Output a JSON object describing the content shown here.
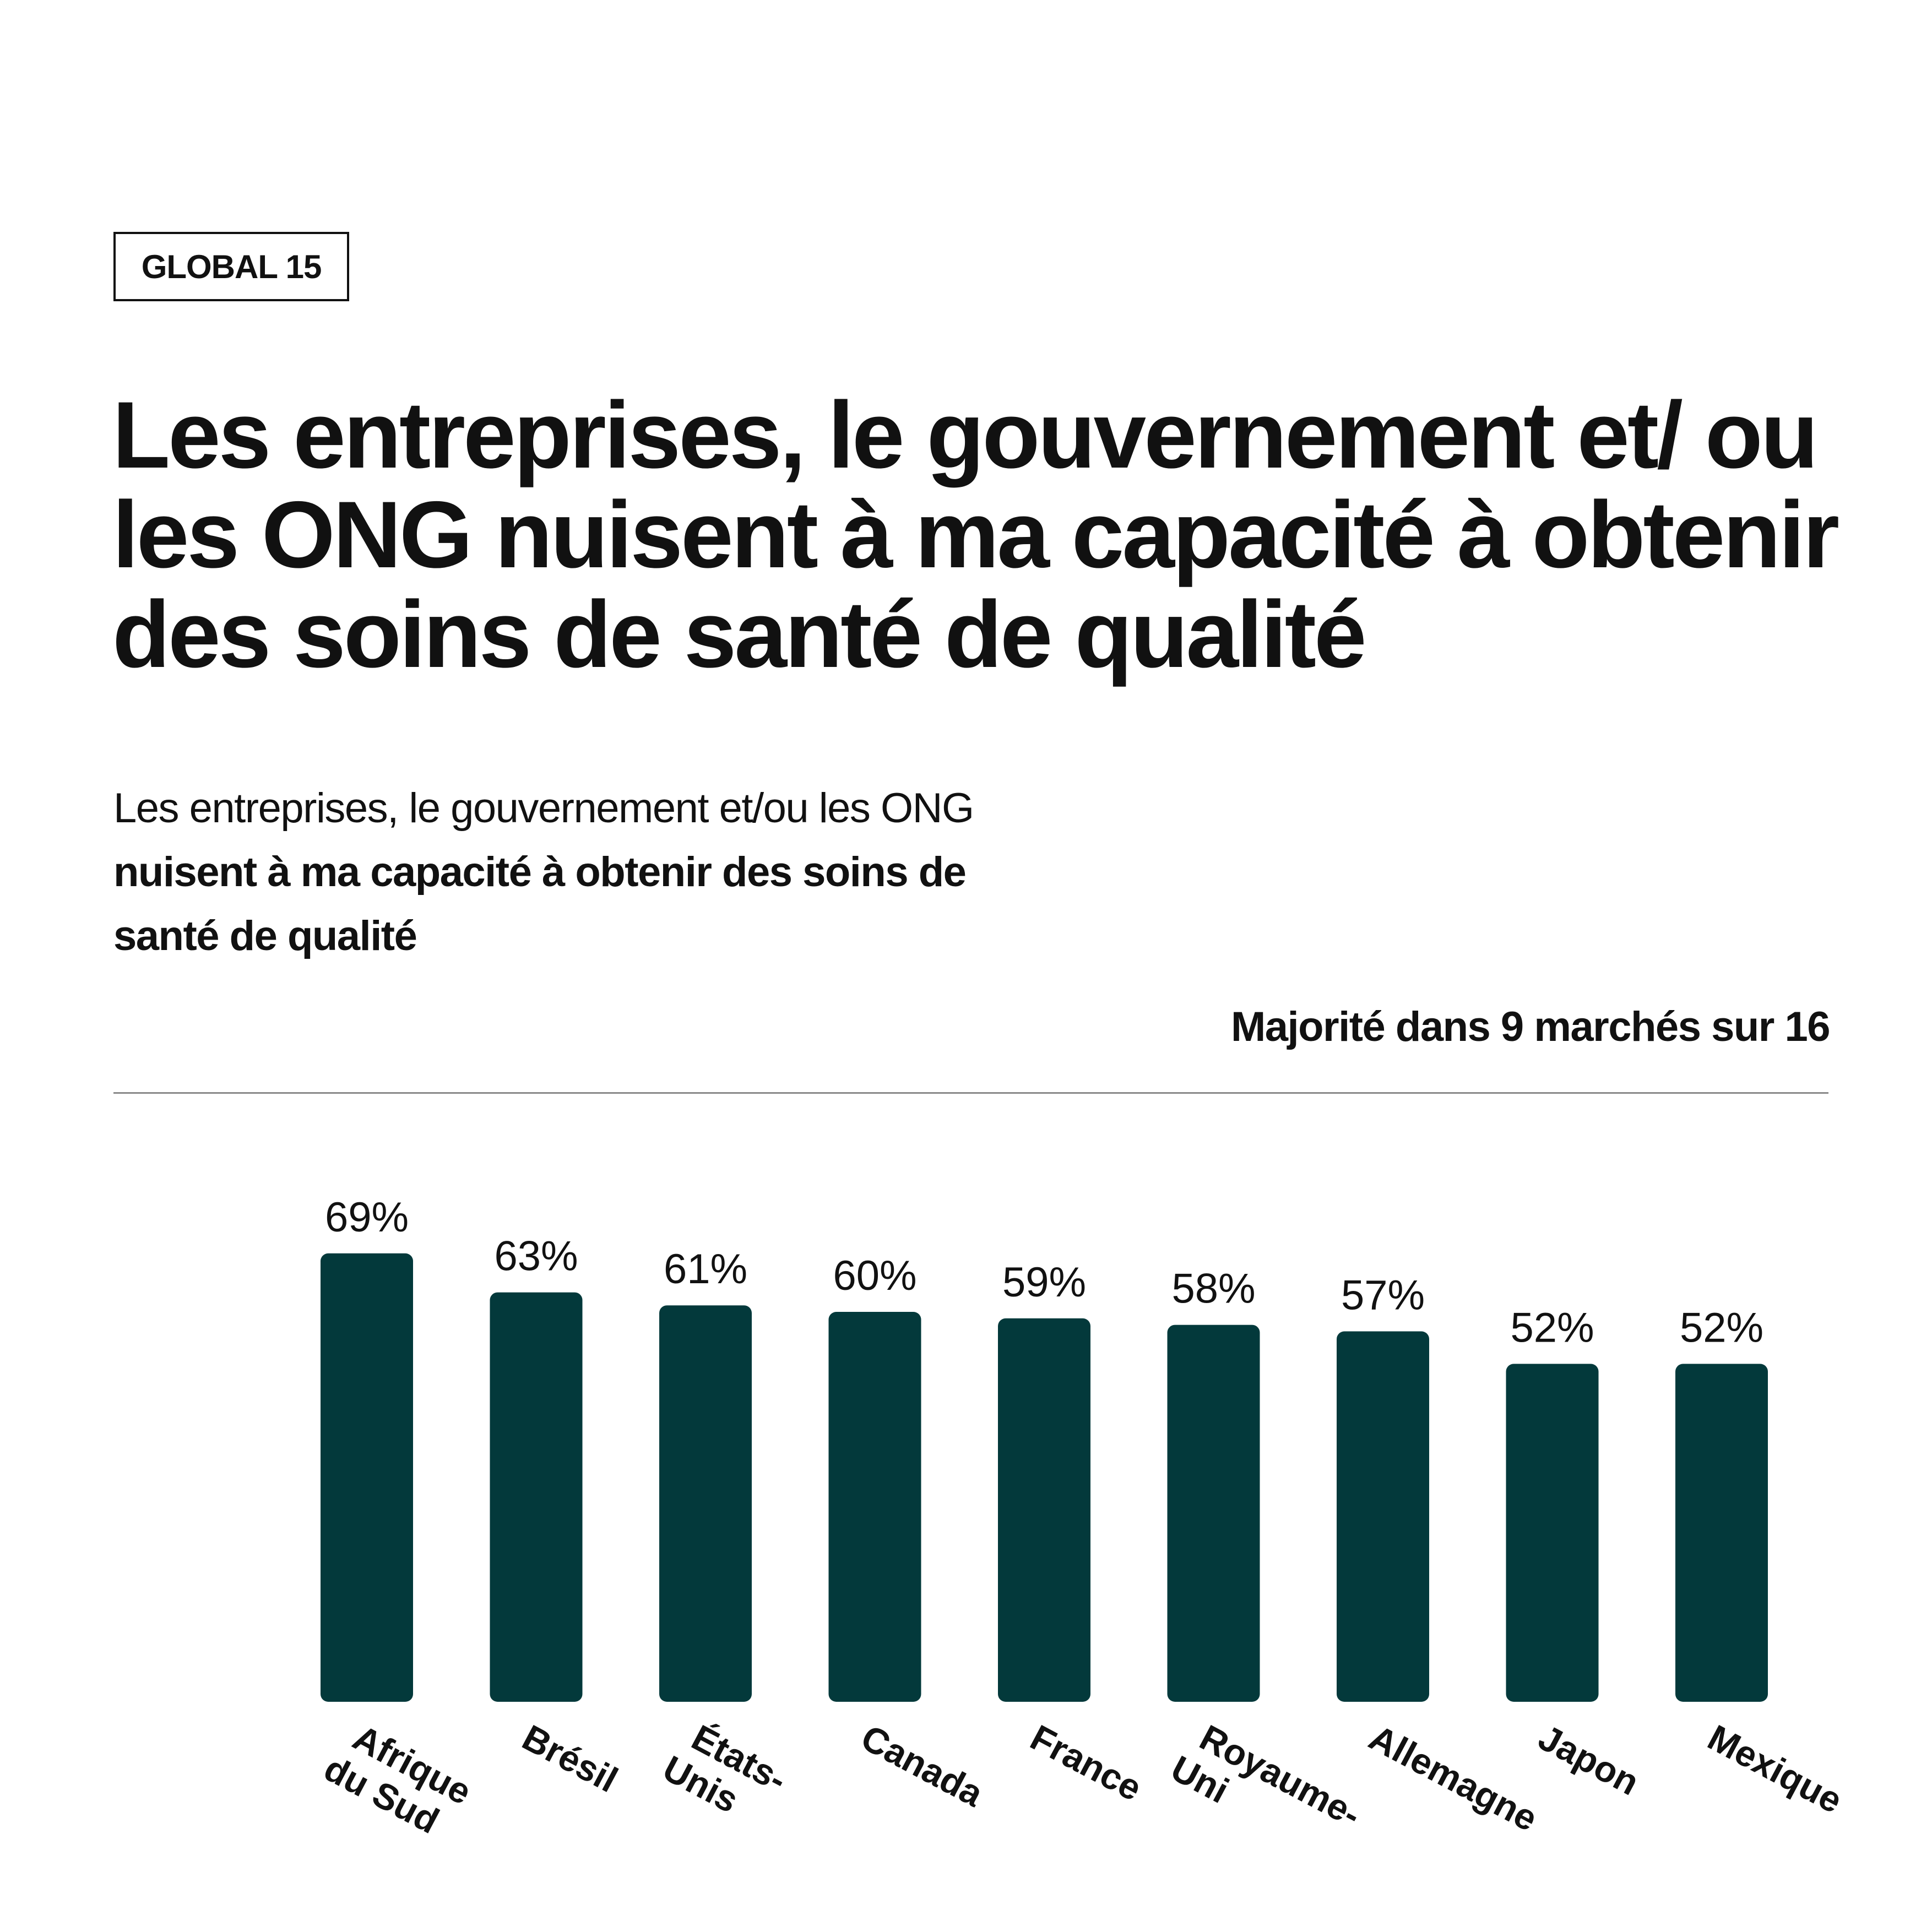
{
  "badge": "GLOBAL 15",
  "title": "Les entreprises, le gouvernement et/ ou les ONG nuisent à ma capacité à obtenir des soins de santé de qualité",
  "subtitle": {
    "regular": "Les entreprises, le gouvernement et/ou les ONG",
    "bold": "nuisent à ma capacité à obtenir des soins de santé de qualité"
  },
  "majority_note": "Majorité dans 9 marchés sur 16",
  "colors": {
    "bar": "#03393b",
    "text": "#111111",
    "rule": "#8a8a8a"
  },
  "chart_data": {
    "type": "bar",
    "categories": [
      "Afrique du Sud",
      "Brésil",
      "États-Unis",
      "Canada",
      "France",
      "Royaume-Uni",
      "Allemagne",
      "Japon",
      "Mexique"
    ],
    "category_lines": [
      [
        "Afrique",
        "du Sud"
      ],
      [
        "Brésil"
      ],
      [
        "États-",
        "Unis"
      ],
      [
        "Canada"
      ],
      [
        "France"
      ],
      [
        "Royaume-",
        "Uni"
      ],
      [
        "Allemagne"
      ],
      [
        "Japon"
      ],
      [
        "Mexique"
      ]
    ],
    "values": [
      69,
      63,
      61,
      60,
      59,
      58,
      57,
      52,
      52
    ],
    "value_labels": [
      "69%",
      "63%",
      "61%",
      "60%",
      "59%",
      "58%",
      "57%",
      "52%",
      "52%"
    ],
    "unit": "%",
    "ylim": [
      0,
      100
    ],
    "grid": false,
    "legend": "none",
    "xlabel": "",
    "ylabel": ""
  }
}
